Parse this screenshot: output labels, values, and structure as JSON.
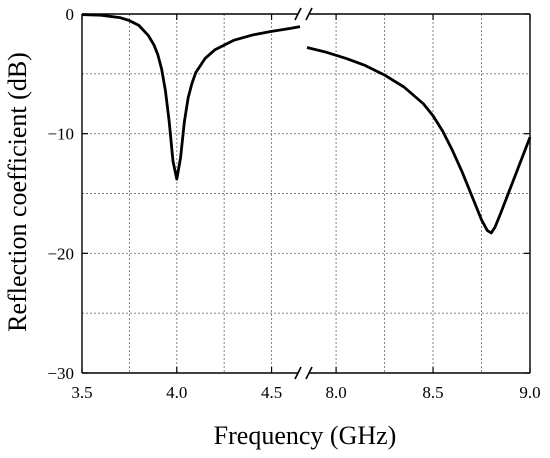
{
  "chart_data": {
    "type": "line",
    "title": "",
    "xlabel": "Frequency (GHz)",
    "ylabel": "Reflection coefficient (dB)",
    "ylim": [
      -30,
      0
    ],
    "yticks": [
      0,
      -10,
      -20,
      -30
    ],
    "ytick_labels": [
      "0",
      "−10",
      "−20",
      "−30"
    ],
    "grid": true,
    "broken_x_axis": true,
    "segments": [
      {
        "xlim": [
          3.5,
          4.65
        ],
        "xticks": [
          3.5,
          4.0,
          4.5
        ],
        "xtick_labels": [
          "3.5",
          "4.0",
          "4.5"
        ],
        "x": [
          3.5,
          3.6,
          3.7,
          3.75,
          3.8,
          3.85,
          3.88,
          3.9,
          3.92,
          3.94,
          3.96,
          3.98,
          4.0,
          4.02,
          4.04,
          4.06,
          4.08,
          4.1,
          4.15,
          4.2,
          4.3,
          4.4,
          4.5,
          4.6,
          4.65
        ],
        "y": [
          -0.05,
          -0.1,
          -0.3,
          -0.55,
          -0.95,
          -1.8,
          -2.6,
          -3.4,
          -4.6,
          -6.4,
          -9.0,
          -12.3,
          -13.8,
          -12.0,
          -9.0,
          -7.0,
          -5.8,
          -4.9,
          -3.7,
          -3.0,
          -2.2,
          -1.75,
          -1.45,
          -1.2,
          -1.05
        ]
      },
      {
        "xlim": [
          7.85,
          9.0
        ],
        "xticks": [
          8.0,
          8.5,
          9.0
        ],
        "xtick_labels": [
          "8.0",
          "8.5",
          "9.0"
        ],
        "x": [
          7.85,
          7.95,
          8.05,
          8.15,
          8.25,
          8.35,
          8.45,
          8.5,
          8.55,
          8.6,
          8.65,
          8.7,
          8.75,
          8.78,
          8.8,
          8.82,
          8.85,
          8.9,
          8.95,
          9.0
        ],
        "y": [
          -2.8,
          -3.2,
          -3.7,
          -4.3,
          -5.1,
          -6.1,
          -7.5,
          -8.5,
          -9.8,
          -11.4,
          -13.2,
          -15.2,
          -17.2,
          -18.1,
          -18.3,
          -17.8,
          -16.6,
          -14.5,
          -12.4,
          -10.3
        ]
      }
    ]
  }
}
